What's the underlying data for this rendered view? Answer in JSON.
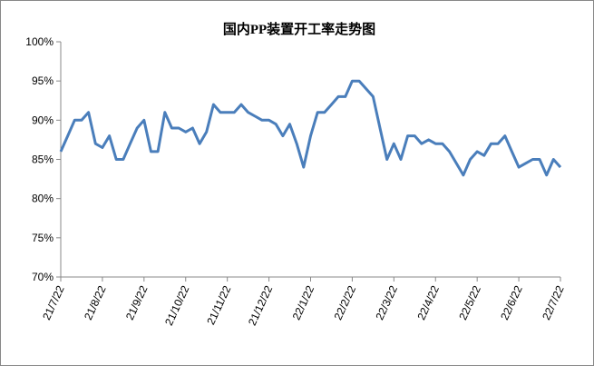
{
  "chart_data": {
    "type": "line",
    "title": "国内PP装置开工率走势图",
    "categories": [
      "21/7/22",
      null,
      null,
      null,
      null,
      null,
      "21/8/22",
      null,
      null,
      null,
      null,
      null,
      "21/9/22",
      null,
      null,
      null,
      null,
      null,
      "21/10/22",
      null,
      null,
      null,
      null,
      null,
      "21/11/22",
      null,
      null,
      null,
      null,
      null,
      "21/12/22",
      null,
      null,
      null,
      null,
      null,
      "22/1/22",
      null,
      null,
      null,
      null,
      null,
      "22/2/22",
      null,
      null,
      null,
      null,
      null,
      "22/3/22",
      null,
      null,
      null,
      null,
      null,
      "22/4/22",
      null,
      null,
      null,
      null,
      null,
      "22/5/22",
      null,
      null,
      null,
      null,
      null,
      "22/6/22",
      null,
      null,
      null,
      null,
      null,
      "22/7/22"
    ],
    "series": [
      {
        "color": "#4a7ebb",
        "values": [
          86,
          88,
          90,
          90,
          91,
          87,
          86.5,
          88,
          85,
          85,
          87,
          89,
          90,
          86,
          86,
          91,
          89,
          89,
          88.5,
          89,
          87,
          88.5,
          92,
          91,
          91,
          91,
          92,
          91,
          90.5,
          90,
          90,
          89.5,
          88,
          89.5,
          87,
          84,
          88,
          91,
          91,
          92,
          93,
          93,
          95,
          95,
          94,
          93,
          89,
          85,
          87,
          85,
          88,
          88,
          87,
          87.5,
          87,
          87,
          86,
          84.5,
          83,
          85,
          86,
          85.5,
          87,
          87,
          88,
          86,
          84,
          84.5,
          85,
          85,
          83,
          85,
          84
        ]
      }
    ],
    "ylim": [
      70,
      100
    ],
    "yticks": [
      {
        "value": 70,
        "label": "70%"
      },
      {
        "value": 75,
        "label": "75%"
      },
      {
        "value": 80,
        "label": "80%"
      },
      {
        "value": 85,
        "label": "85%"
      },
      {
        "value": 90,
        "label": "90%"
      },
      {
        "value": 95,
        "label": "95%"
      },
      {
        "value": 100,
        "label": "100%"
      }
    ],
    "grid": false
  }
}
